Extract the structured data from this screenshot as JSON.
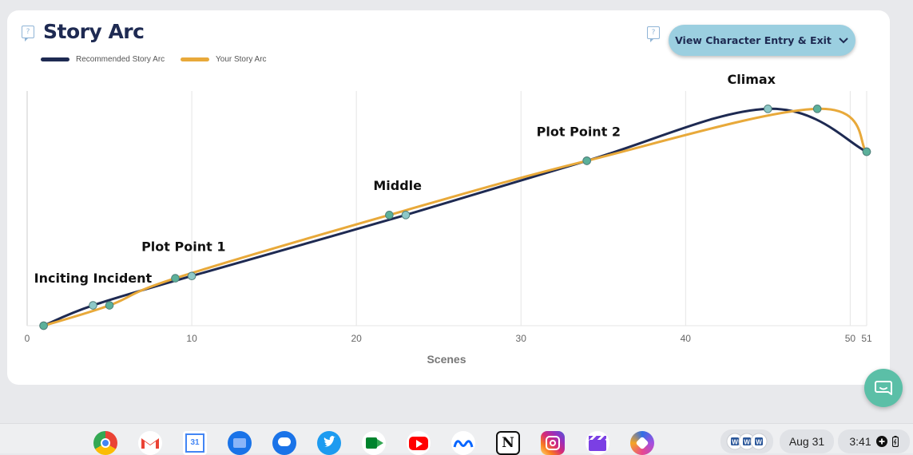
{
  "chart_data": {
    "type": "line",
    "title": "Story Arc",
    "xlabel": "Scenes",
    "ylabel": "",
    "xlim": [
      0,
      51
    ],
    "ylim": [
      0,
      100
    ],
    "x_ticks": [
      0,
      10,
      20,
      30,
      40,
      50,
      51
    ],
    "grid": "vertical",
    "legend_position": "top-left",
    "series": [
      {
        "name": "Recommended Story Arc",
        "color": "#1e2a52",
        "x": [
          1,
          4,
          10,
          23,
          34,
          45,
          51
        ],
        "y": [
          0,
          9,
          22,
          49,
          73,
          96,
          77
        ]
      },
      {
        "name": "Your Story Arc",
        "color": "#e8a93a",
        "x": [
          1,
          5,
          9,
          22,
          34,
          48,
          51
        ],
        "y": [
          0,
          9,
          21,
          49,
          73,
          96,
          77
        ]
      }
    ],
    "annotations": [
      {
        "text": "Inciting Incident",
        "x": 4,
        "y": 19
      },
      {
        "text": "Plot Point 1",
        "x": 9.5,
        "y": 33
      },
      {
        "text": "Middle",
        "x": 22.5,
        "y": 60
      },
      {
        "text": "Plot Point 2",
        "x": 33.5,
        "y": 84
      },
      {
        "text": "Climax",
        "x": 44,
        "y": 107
      }
    ]
  },
  "button": {
    "label": "View Character Entry & Exit"
  },
  "taskbar": {
    "apps": [
      "Chrome",
      "Gmail",
      "Calendar",
      "Files",
      "Messages",
      "Twitter",
      "Meet",
      "YouTube",
      "Meta",
      "Notion",
      "Instagram",
      "Clapper",
      "Copilot"
    ],
    "calendar_day": "31",
    "date": "Aug 31",
    "time": "3:41"
  },
  "colors": {
    "accent": "#9bcfe0",
    "navy": "#1e2a52",
    "orange": "#e8a93a",
    "marker": "#5bb09a"
  }
}
